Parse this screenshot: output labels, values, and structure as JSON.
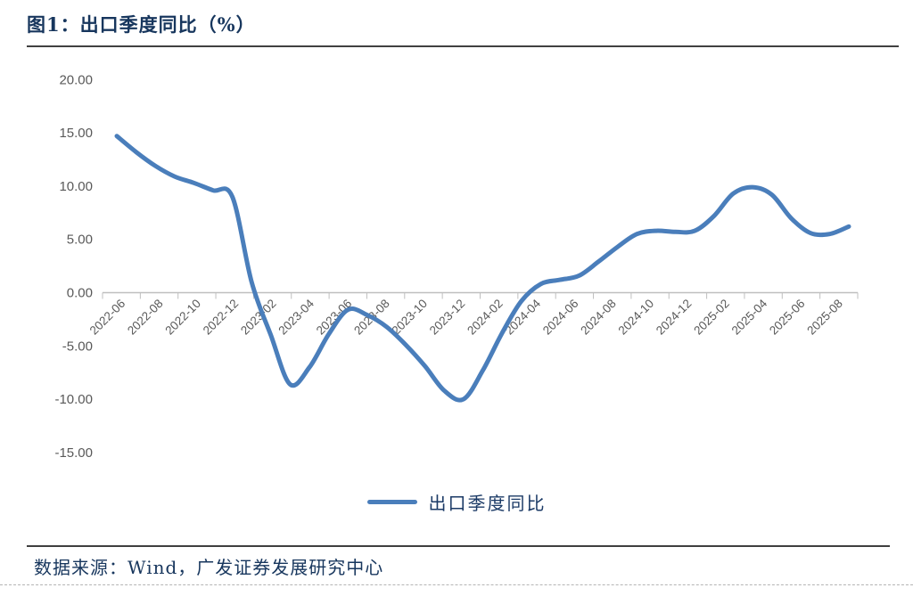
{
  "page": {
    "title": "图1：出口季度同比（%）",
    "footer_source": "数据来源：Wind，广发证券发展研究中心"
  },
  "legend": {
    "label": "出口季度同比"
  },
  "colors": {
    "series_line": "#4a7ebb",
    "title_text": "#17365d",
    "axis_label_text": "#595959",
    "axis_line": "#bfbfbf",
    "divider_dark": "#404040"
  },
  "chart_data": {
    "type": "line",
    "title": "出口季度同比（%）",
    "ylabel": "",
    "xlabel": "",
    "ylim": [
      -15,
      20
    ],
    "y_ticks": [
      20,
      15,
      10,
      5,
      0,
      -5,
      -10,
      -15
    ],
    "y_tick_format": "0.00",
    "grid": false,
    "smooth": true,
    "legend_position": "bottom",
    "x_tick_labels": [
      "2022-06",
      "2022-08",
      "2022-10",
      "2022-12",
      "2023-02",
      "2023-04",
      "2023-06",
      "2023-08",
      "2023-10",
      "2023-12",
      "2024-02",
      "2024-04",
      "2024-06",
      "2024-08",
      "2024-10",
      "2024-12",
      "2025-02",
      "2025-04",
      "2025-06",
      "2025-08"
    ],
    "x": [
      "2022-06",
      "2022-07",
      "2022-08",
      "2022-09",
      "2022-10",
      "2022-11",
      "2022-12",
      "2023-01",
      "2023-02",
      "2023-03",
      "2023-04",
      "2023-05",
      "2023-06",
      "2023-07",
      "2023-08",
      "2023-09",
      "2023-10",
      "2023-11",
      "2023-12",
      "2024-01",
      "2024-02",
      "2024-03",
      "2024-04",
      "2024-05",
      "2024-06",
      "2024-07",
      "2024-08",
      "2024-09",
      "2024-10",
      "2024-11",
      "2024-12",
      "2025-01",
      "2025-02",
      "2025-03",
      "2025-04",
      "2025-05",
      "2025-06",
      "2025-07",
      "2025-08"
    ],
    "series": [
      {
        "name": "出口季度同比",
        "values": [
          14.7,
          13.2,
          11.9,
          10.9,
          10.3,
          9.6,
          9.0,
          1.0,
          -4.0,
          -8.6,
          -7.0,
          -3.9,
          -1.6,
          -2.1,
          -3.2,
          -4.9,
          -6.9,
          -9.2,
          -10.0,
          -7.3,
          -3.8,
          -0.8,
          0.8,
          1.2,
          1.6,
          2.9,
          4.3,
          5.5,
          5.8,
          5.7,
          5.8,
          7.2,
          9.3,
          9.9,
          9.2,
          7.0,
          5.6,
          5.5,
          6.2
        ]
      }
    ]
  }
}
